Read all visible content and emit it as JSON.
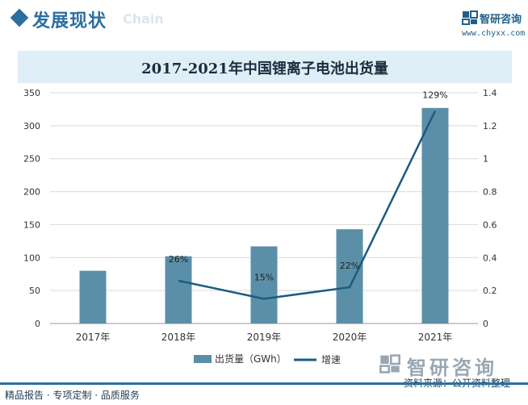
{
  "header": {
    "title": "发展现状",
    "subtitle": "Chain",
    "brand_name": "智研咨询",
    "brand_url": "www.chyxx.com"
  },
  "colors": {
    "accent": "#2b6f9e",
    "bar": "#5b8fa8",
    "line": "#1b5c80",
    "title_band": "#dfeef7"
  },
  "chart_data": {
    "type": "bar",
    "title": "2017-2021年中国锂离子电池出货量",
    "categories": [
      "2017年",
      "2018年",
      "2019年",
      "2020年",
      "2021年"
    ],
    "y_left": {
      "min": 0,
      "max": 350,
      "ticks": [
        0,
        50,
        100,
        150,
        200,
        250,
        300,
        350
      ]
    },
    "y_right": {
      "min": 0,
      "max": 1.4,
      "ticks": [
        "0",
        "0.2",
        "0.4",
        "0.6",
        "0.8",
        "1",
        "1.2",
        "1.4"
      ]
    },
    "series": [
      {
        "name": "出货量（GWh）",
        "kind": "bar",
        "axis": "left",
        "values": [
          80,
          102,
          117,
          143,
          327
        ]
      },
      {
        "name": "增速",
        "kind": "line",
        "axis": "right",
        "values": [
          null,
          0.26,
          0.15,
          0.22,
          1.29
        ],
        "labels": [
          "",
          "26%",
          "15%",
          "22%",
          "129%"
        ]
      }
    ],
    "grid": true,
    "legend_position": "bottom"
  },
  "footer": {
    "left": "精品报告 · 专项定制 · 品质服务",
    "brand_name": "智研咨询",
    "source": "资料来源：公开资料整理"
  }
}
